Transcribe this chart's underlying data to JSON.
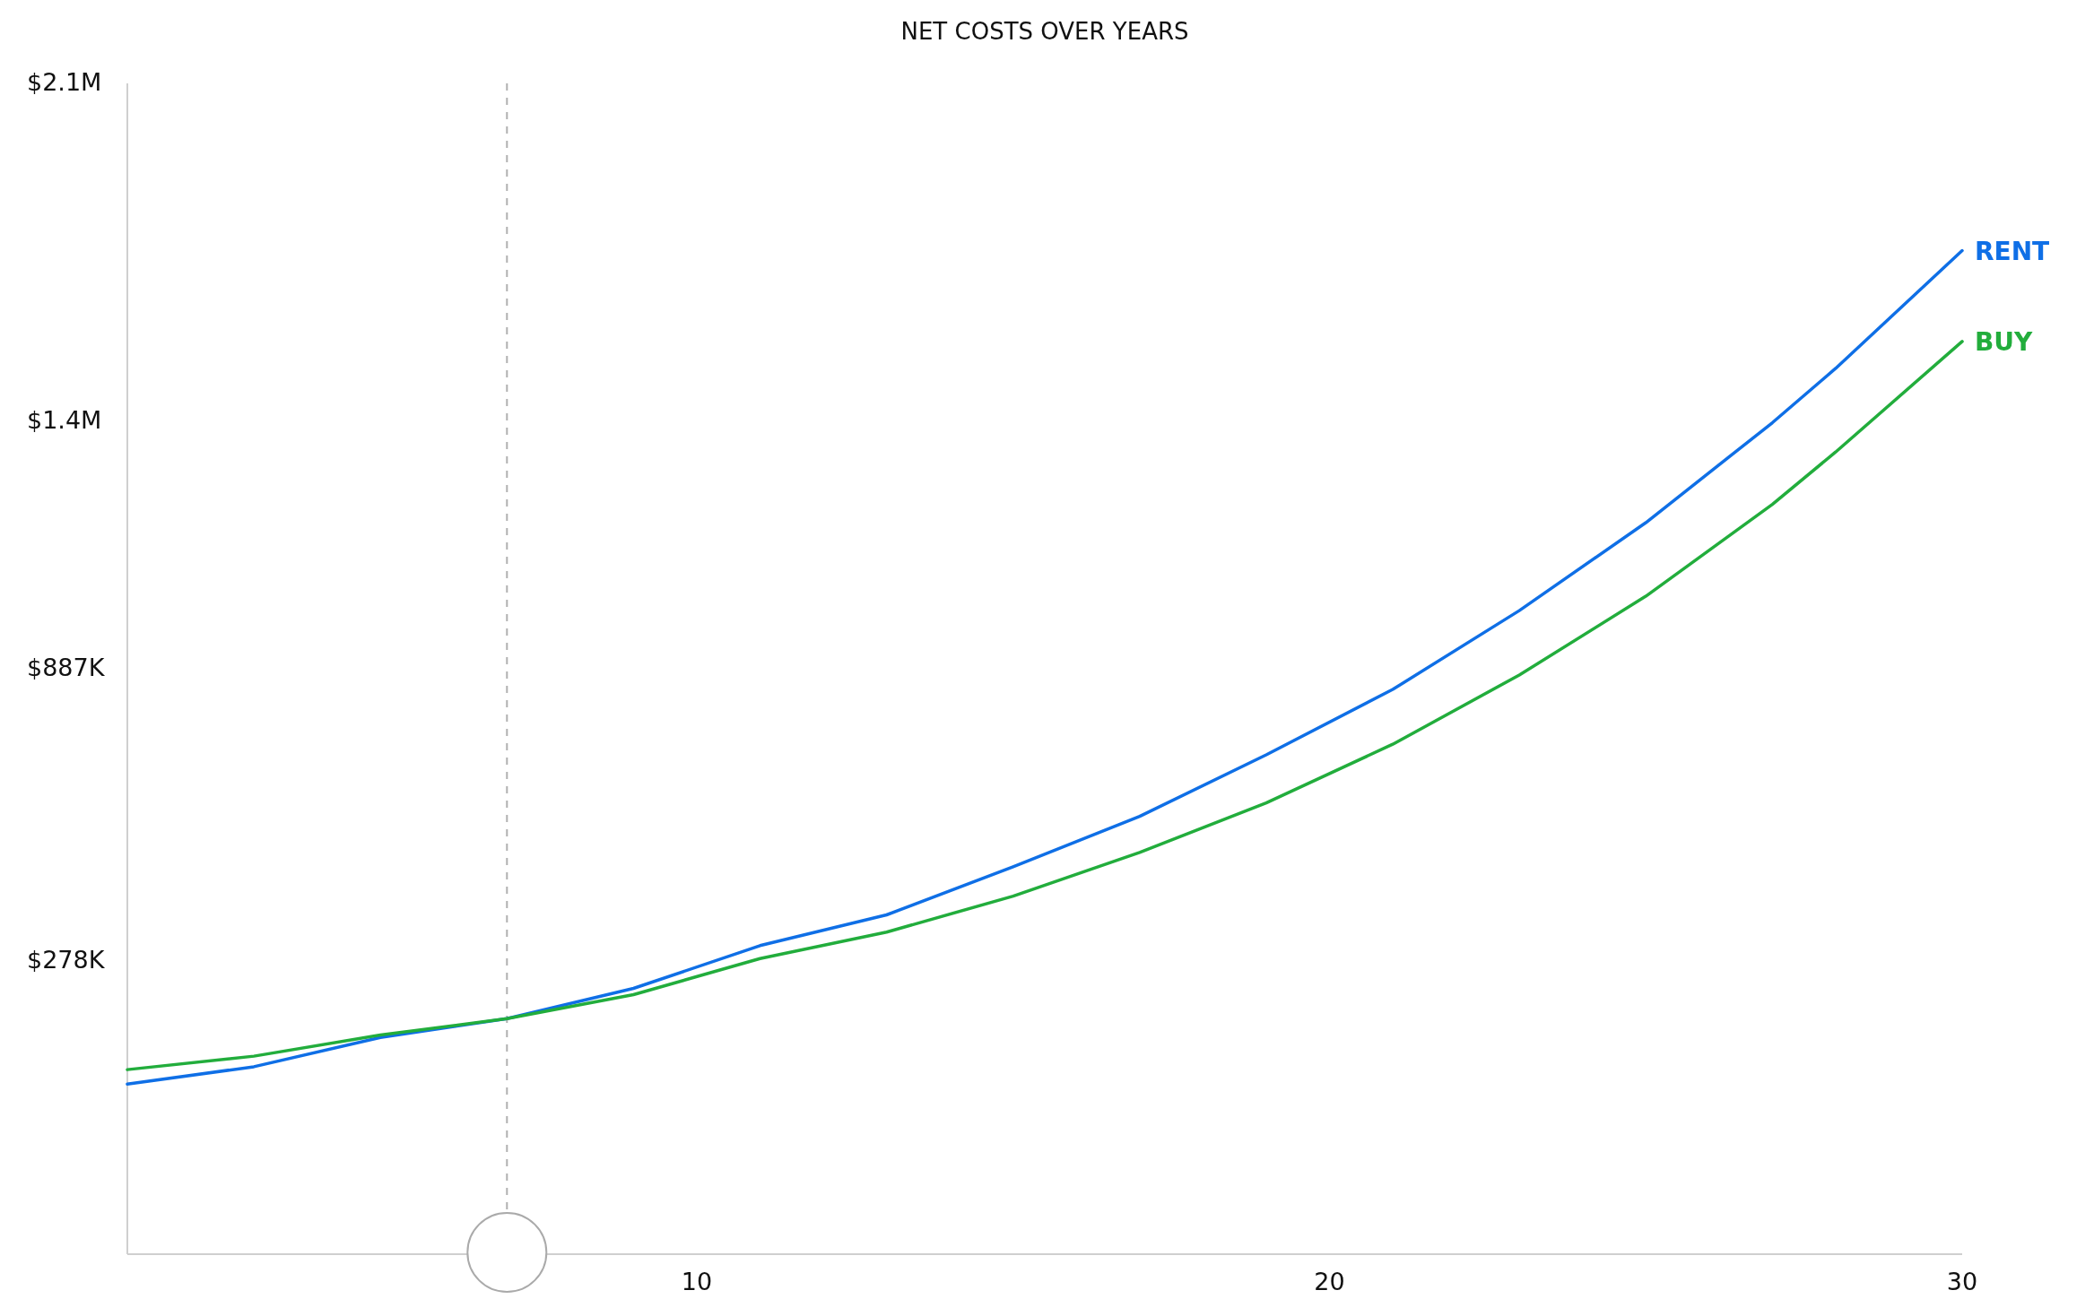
{
  "chart_data": {
    "type": "line",
    "title": "NET COSTS OVER YEARS",
    "x": [
      1,
      3,
      5,
      7,
      9,
      11,
      13,
      15,
      17,
      19,
      21,
      23,
      25,
      27,
      28,
      30
    ],
    "series": [
      {
        "name": "RENT",
        "color": "#0f6fe6",
        "values": [
          23000,
          59000,
          120000,
          159000,
          222000,
          311000,
          375000,
          475000,
          580000,
          708000,
          844000,
          1008000,
          1191000,
          1399000,
          1512000,
          1757000
        ]
      },
      {
        "name": "BUY",
        "color": "#22ad3c",
        "values": [
          53000,
          81000,
          125000,
          159000,
          209000,
          284000,
          339000,
          414000,
          505000,
          608000,
          730000,
          874000,
          1038000,
          1229000,
          1338000,
          1568000
        ]
      }
    ],
    "xlim": [
      1,
      30
    ],
    "xticks": [
      10,
      20,
      30
    ],
    "ylim": [
      -331000,
      2105000
    ],
    "yticks": [
      {
        "value": 278000,
        "label": "$278K"
      },
      {
        "value": 887000,
        "label": "$887K"
      },
      {
        "value": 1400000,
        "label": "$1.4M"
      },
      {
        "value": 2105000,
        "label": "$2.1M"
      }
    ],
    "ref_lines": [
      {
        "axis": "x",
        "value": 7,
        "label": null,
        "color": "#b0b0b0",
        "line_style": "dashed"
      }
    ],
    "grid": false,
    "legend": false,
    "marker": "none",
    "line_style": "solid"
  }
}
